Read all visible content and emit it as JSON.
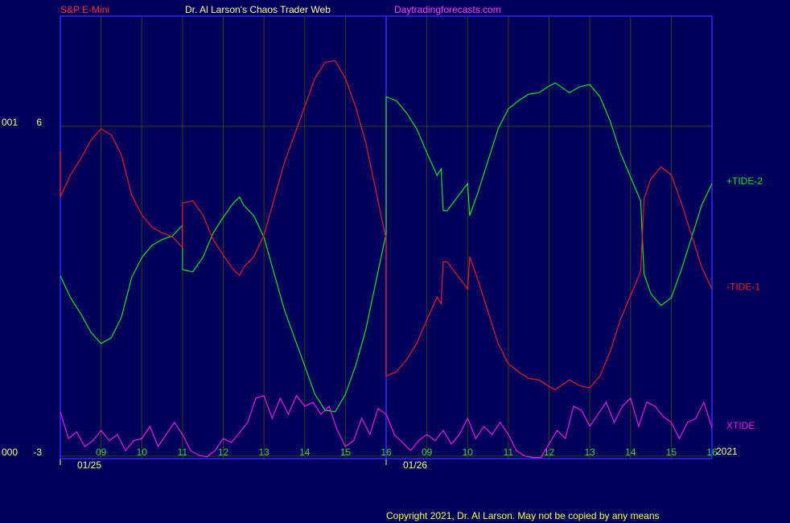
{
  "chart_data": {
    "type": "line",
    "header": {
      "instrument": "S&P E-Mini",
      "title": "Dr. Al Larson's Chaos Trader Web",
      "site": "Daytradingforecasts.com"
    },
    "footer": "Copyright 2021, Dr. Al Larson. May not be copied by any means",
    "year_label": "2021",
    "xlim": [
      0,
      16
    ],
    "ylim": [
      -3.07,
      9.01
    ],
    "yticks": [
      6,
      -3
    ],
    "ytick_prefixes": [
      "001",
      "000"
    ],
    "xticks": [
      {
        "value": 1,
        "label": "09"
      },
      {
        "value": 2,
        "label": "10"
      },
      {
        "value": 3,
        "label": "11"
      },
      {
        "value": 4,
        "label": "12"
      },
      {
        "value": 5,
        "label": "13"
      },
      {
        "value": 6,
        "label": "14"
      },
      {
        "value": 7,
        "label": "15"
      },
      {
        "value": 8,
        "label": "16"
      },
      {
        "value": 9,
        "label": "09"
      },
      {
        "value": 10,
        "label": "10"
      },
      {
        "value": 11,
        "label": "11"
      },
      {
        "value": 12,
        "label": "12"
      },
      {
        "value": 13,
        "label": "13"
      },
      {
        "value": 14,
        "label": "14"
      },
      {
        "value": 15,
        "label": "15"
      },
      {
        "value": 16,
        "label": "16"
      }
    ],
    "date_ticks": [
      {
        "value": 0,
        "label": "01/25"
      },
      {
        "value": 8,
        "label": "01/26"
      }
    ],
    "session_breaks": [
      8
    ],
    "grid": true,
    "series": [
      {
        "name": "+TIDE-2",
        "color": "#20e020",
        "x": [
          0,
          0.25,
          0.5,
          0.75,
          1,
          1.25,
          1.5,
          1.75,
          2,
          2.25,
          2.5,
          2.75,
          3,
          3,
          3.25,
          3.5,
          3.75,
          4,
          4.25,
          4.4,
          4.5,
          4.75,
          5,
          5.25,
          5.5,
          5.75,
          6,
          6.25,
          6.5,
          6.75,
          7,
          7.25,
          7.5,
          7.75,
          8,
          8,
          8.25,
          8.5,
          8.75,
          9,
          9.25,
          9.35,
          9.4,
          9.5,
          9.75,
          10,
          10.05,
          10.25,
          10.5,
          10.75,
          11,
          11.25,
          11.5,
          11.75,
          12,
          12.15,
          12.5,
          12.75,
          13,
          13.25,
          13.5,
          13.75,
          14,
          14.25,
          14.33,
          14.5,
          14.75,
          15,
          15.25,
          15.5,
          15.75,
          16
        ],
        "values": [
          1.92,
          1.32,
          0.89,
          0.38,
          0.07,
          0.23,
          0.78,
          1.87,
          2.42,
          2.75,
          2.91,
          3.01,
          3.3,
          2.09,
          2.03,
          2.42,
          3.08,
          3.52,
          3.91,
          4.07,
          3.85,
          3.56,
          2.97,
          1.98,
          1.0,
          0.23,
          -0.54,
          -1.31,
          -1.75,
          -1.79,
          -1.31,
          -0.54,
          0.45,
          1.76,
          3.08,
          6.81,
          6.7,
          6.37,
          5.93,
          5.28,
          4.66,
          4.84,
          3.7,
          3.7,
          4.07,
          4.44,
          3.56,
          4.18,
          5.06,
          5.93,
          6.48,
          6.7,
          6.88,
          6.92,
          7.1,
          7.19,
          6.92,
          7.08,
          7.14,
          6.81,
          6.15,
          5.28,
          4.62,
          3.96,
          1.98,
          1.43,
          1.11,
          1.32,
          2.09,
          2.97,
          3.85,
          4.44
        ]
      },
      {
        "name": "-TIDE-1",
        "color": "#e02020",
        "x": [
          0,
          0,
          0.25,
          0.5,
          0.75,
          1,
          1.25,
          1.5,
          1.75,
          2,
          2.25,
          2.5,
          2.75,
          3,
          3,
          3.25,
          3.5,
          3.75,
          4,
          4.25,
          4.4,
          4.5,
          4.75,
          5,
          5.25,
          5.5,
          5.75,
          6,
          6.25,
          6.5,
          6.75,
          7,
          7.25,
          7.5,
          7.75,
          8,
          8,
          8.25,
          8.5,
          8.75,
          9,
          9.25,
          9.35,
          9.4,
          9.5,
          9.75,
          10,
          10.05,
          10.25,
          10.5,
          10.75,
          11,
          11.25,
          11.5,
          11.75,
          12,
          12.15,
          12.5,
          12.75,
          13,
          13.25,
          13.5,
          13.75,
          14,
          14.25,
          14.33,
          14.5,
          14.75,
          15,
          15.25,
          15.5,
          15.75,
          16
        ],
        "values": [
          5.32,
          4.08,
          4.68,
          5.11,
          5.62,
          5.93,
          5.77,
          5.22,
          4.13,
          3.58,
          3.25,
          3.09,
          2.99,
          2.7,
          3.91,
          3.97,
          3.58,
          2.92,
          2.48,
          2.09,
          1.93,
          2.15,
          2.44,
          3.03,
          4.02,
          5.0,
          5.77,
          6.54,
          7.31,
          7.75,
          7.79,
          7.31,
          6.54,
          5.55,
          4.24,
          2.92,
          -0.81,
          -0.7,
          -0.37,
          0.07,
          0.72,
          1.34,
          1.16,
          2.3,
          2.3,
          1.93,
          1.56,
          2.44,
          1.82,
          0.94,
          0.07,
          -0.48,
          -0.7,
          -0.88,
          -0.92,
          -1.1,
          -1.19,
          -0.92,
          -1.08,
          -1.14,
          -0.81,
          -0.15,
          0.72,
          1.38,
          2.04,
          4.02,
          4.57,
          4.89,
          4.68,
          3.91,
          3.03,
          2.15,
          1.56
        ]
      },
      {
        "name": "XTIDE",
        "color": "#e020e0",
        "x": [
          0,
          0.2,
          0.4,
          0.6,
          0.8,
          1,
          1.2,
          1.4,
          1.6,
          1.8,
          2,
          2.2,
          2.4,
          2.6,
          2.8,
          3,
          3.2,
          3.4,
          3.6,
          3.8,
          4,
          4.2,
          4.4,
          4.6,
          4.8,
          5,
          5.2,
          5.4,
          5.6,
          5.8,
          6,
          6.2,
          6.4,
          6.6,
          6.8,
          7,
          7.2,
          7.4,
          7.6,
          7.8,
          8,
          8.2,
          8.4,
          8.6,
          8.8,
          9,
          9.2,
          9.4,
          9.6,
          9.8,
          10,
          10.2,
          10.4,
          10.6,
          10.8,
          11,
          11.2,
          11.4,
          11.6,
          11.8,
          12,
          12.2,
          12.4,
          12.6,
          12.8,
          13,
          13.2,
          13.4,
          13.6,
          13.8,
          14,
          14.2,
          14.4,
          14.6,
          14.8,
          15,
          15.2,
          15.4,
          15.6,
          15.8,
          16
        ],
        "values": [
          -1.79,
          -2.52,
          -2.34,
          -2.74,
          -2.58,
          -2.3,
          -2.58,
          -2.41,
          -2.85,
          -2.58,
          -2.52,
          -2.19,
          -2.74,
          -2.41,
          -2.08,
          -2.41,
          -2.85,
          -2.98,
          -3.02,
          -2.85,
          -2.52,
          -2.63,
          -2.36,
          -2.08,
          -1.42,
          -1.35,
          -1.97,
          -1.42,
          -1.86,
          -1.35,
          -1.64,
          -1.53,
          -1.86,
          -1.64,
          -2.3,
          -2.74,
          -2.58,
          -1.97,
          -2.41,
          -1.7,
          -1.86,
          -2.41,
          -2.63,
          -2.85,
          -2.58,
          -2.41,
          -2.58,
          -2.3,
          -2.67,
          -2.41,
          -1.97,
          -2.52,
          -2.19,
          -2.41,
          -2.08,
          -2.41,
          -2.85,
          -3.0,
          -3.04,
          -3.04,
          -2.67,
          -2.3,
          -2.52,
          -1.64,
          -1.75,
          -2.19,
          -1.86,
          -1.53,
          -2.08,
          -1.64,
          -1.42,
          -2.19,
          -1.53,
          -1.64,
          -1.92,
          -2.08,
          -2.52,
          -2.08,
          -1.97,
          -1.53,
          -2.23
        ]
      }
    ]
  }
}
